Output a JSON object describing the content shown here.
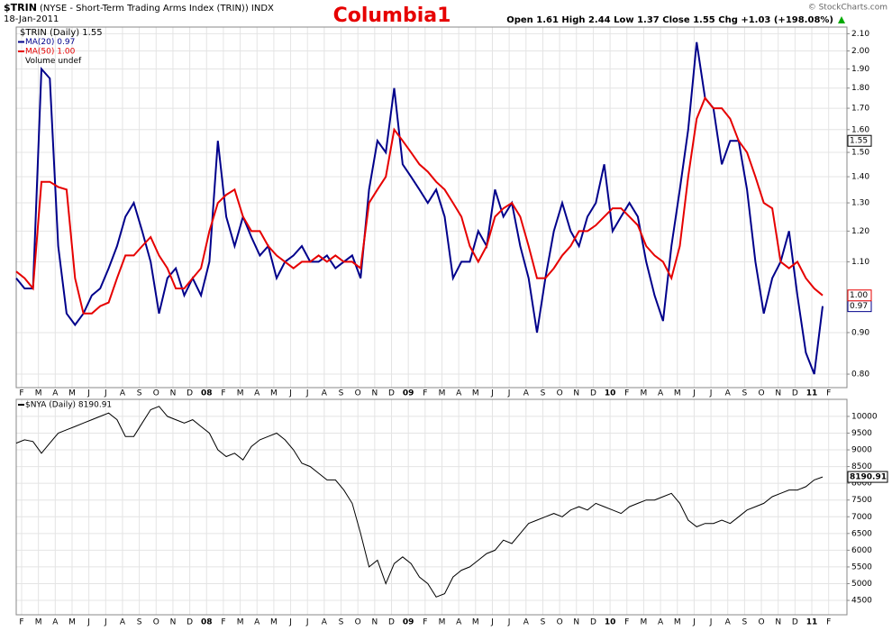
{
  "header": {
    "symbol": "$TRIN",
    "description": "(NYSE - Short-Term Trading Arms Index (TRIN)) INDX",
    "date": "18-Jan-2011",
    "title": "Columbia1",
    "quote": "Open 1.61  High 2.44  Low 1.37  Close 1.55  Chg +1.03 (+198.08%)",
    "copyright": "© StockCharts.com"
  },
  "chart_data": [
    {
      "type": "line",
      "legend_label": "$TRIN (Daily) 1.55",
      "volume_label": "Volume undef",
      "close": {
        "value": 1.55,
        "label": "1.55"
      },
      "log_scale": true,
      "grid": true,
      "ylim": [
        0.77,
        2.14
      ],
      "yticks": [
        {
          "value": 0.8,
          "label": "0.80"
        },
        {
          "value": 0.9,
          "label": "0.90"
        },
        {
          "value": 1.1,
          "label": "1.10"
        },
        {
          "value": 1.2,
          "label": "1.20"
        },
        {
          "value": 1.3,
          "label": "1.30"
        },
        {
          "value": 1.4,
          "label": "1.40"
        },
        {
          "value": 1.5,
          "label": "1.50"
        },
        {
          "value": 1.6,
          "label": "1.60"
        },
        {
          "value": 1.7,
          "label": "1.70"
        },
        {
          "value": 1.8,
          "label": "1.80"
        },
        {
          "value": 1.9,
          "label": "1.90"
        },
        {
          "value": 2.0,
          "label": "2.00"
        },
        {
          "value": 2.1,
          "label": "2.10"
        }
      ],
      "x_labels": [
        "F",
        "M",
        "A",
        "M",
        "J",
        "J",
        "A",
        "S",
        "O",
        "N",
        "D",
        "08",
        "F",
        "M",
        "A",
        "M",
        "J",
        "J",
        "A",
        "S",
        "O",
        "N",
        "D",
        "09",
        "F",
        "M",
        "A",
        "M",
        "J",
        "J",
        "A",
        "S",
        "O",
        "N",
        "D",
        "10",
        "F",
        "M",
        "A",
        "M",
        "J",
        "J",
        "A",
        "S",
        "O",
        "N",
        "D",
        "11",
        "F"
      ],
      "series": [
        {
          "name": "MA(20) 0.97",
          "end_label": "0.97",
          "color": "#00008b",
          "values": [
            1.05,
            1.02,
            1.02,
            1.9,
            1.85,
            1.15,
            0.95,
            0.92,
            0.95,
            1.0,
            1.02,
            1.08,
            1.15,
            1.25,
            1.3,
            1.2,
            1.1,
            0.95,
            1.05,
            1.08,
            1.0,
            1.05,
            1.0,
            1.1,
            1.55,
            1.25,
            1.15,
            1.25,
            1.18,
            1.12,
            1.15,
            1.05,
            1.1,
            1.12,
            1.15,
            1.1,
            1.1,
            1.12,
            1.08,
            1.1,
            1.12,
            1.05,
            1.35,
            1.55,
            1.5,
            1.8,
            1.45,
            1.4,
            1.35,
            1.3,
            1.35,
            1.25,
            1.05,
            1.1,
            1.1,
            1.2,
            1.15,
            1.35,
            1.25,
            1.3,
            1.15,
            1.05,
            0.9,
            1.05,
            1.2,
            1.3,
            1.2,
            1.15,
            1.25,
            1.3,
            1.45,
            1.2,
            1.25,
            1.3,
            1.25,
            1.1,
            1.0,
            0.93,
            1.15,
            1.35,
            1.6,
            2.05,
            1.75,
            1.7,
            1.45,
            1.55,
            1.55,
            1.35,
            1.1,
            0.95,
            1.05,
            1.1,
            1.2,
            1.0,
            0.85,
            0.8,
            0.97
          ]
        },
        {
          "name": "MA(50) 1.00",
          "end_label": "1.00",
          "color": "#e60000",
          "values": [
            1.07,
            1.05,
            1.02,
            1.38,
            1.38,
            1.36,
            1.35,
            1.05,
            0.95,
            0.95,
            0.97,
            0.98,
            1.05,
            1.12,
            1.12,
            1.15,
            1.18,
            1.12,
            1.08,
            1.02,
            1.02,
            1.05,
            1.08,
            1.2,
            1.3,
            1.33,
            1.35,
            1.25,
            1.2,
            1.2,
            1.15,
            1.12,
            1.1,
            1.08,
            1.1,
            1.1,
            1.12,
            1.1,
            1.12,
            1.1,
            1.1,
            1.08,
            1.3,
            1.35,
            1.4,
            1.6,
            1.55,
            1.5,
            1.45,
            1.42,
            1.38,
            1.35,
            1.3,
            1.25,
            1.15,
            1.1,
            1.15,
            1.25,
            1.28,
            1.3,
            1.25,
            1.15,
            1.05,
            1.05,
            1.08,
            1.12,
            1.15,
            1.2,
            1.2,
            1.22,
            1.25,
            1.28,
            1.28,
            1.25,
            1.22,
            1.15,
            1.12,
            1.1,
            1.05,
            1.15,
            1.4,
            1.65,
            1.75,
            1.7,
            1.7,
            1.65,
            1.55,
            1.5,
            1.4,
            1.3,
            1.28,
            1.1,
            1.08,
            1.1,
            1.05,
            1.02,
            1.0
          ]
        }
      ]
    },
    {
      "type": "line",
      "log_scale": false,
      "grid": true,
      "ylim": [
        4070,
        10510
      ],
      "yticks": [
        4500,
        5000,
        5500,
        6000,
        6500,
        7000,
        7500,
        8000,
        8500,
        9000,
        9500,
        10000
      ],
      "x_labels": [
        "F",
        "M",
        "A",
        "M",
        "J",
        "J",
        "A",
        "S",
        "O",
        "N",
        "D",
        "08",
        "F",
        "M",
        "A",
        "M",
        "J",
        "J",
        "A",
        "S",
        "O",
        "N",
        "D",
        "09",
        "F",
        "M",
        "A",
        "M",
        "J",
        "J",
        "A",
        "S",
        "O",
        "N",
        "D",
        "10",
        "F",
        "M",
        "A",
        "M",
        "J",
        "J",
        "A",
        "S",
        "O",
        "N",
        "D",
        "11",
        "F"
      ],
      "series": [
        {
          "name": "$NYA (Daily) 8190.91",
          "end_label": "8190.91",
          "color": "#000000",
          "values": [
            9200,
            9300,
            9250,
            8900,
            9200,
            9500,
            9600,
            9700,
            9800,
            9900,
            10000,
            10100,
            9900,
            9400,
            9400,
            9800,
            10200,
            10300,
            10000,
            9900,
            9800,
            9900,
            9700,
            9500,
            9000,
            8800,
            8900,
            8700,
            9100,
            9300,
            9400,
            9500,
            9300,
            9000,
            8600,
            8500,
            8300,
            8100,
            8100,
            7800,
            7400,
            6500,
            5500,
            5700,
            5000,
            5600,
            5800,
            5600,
            5200,
            5000,
            4600,
            4700,
            5200,
            5400,
            5500,
            5700,
            5900,
            6000,
            6300,
            6200,
            6500,
            6800,
            6900,
            7000,
            7100,
            7000,
            7200,
            7300,
            7200,
            7400,
            7300,
            7200,
            7100,
            7300,
            7400,
            7500,
            7500,
            7600,
            7700,
            7400,
            6900,
            6700,
            6800,
            6800,
            6900,
            6800,
            7000,
            7200,
            7300,
            7400,
            7600,
            7700,
            7800,
            7800,
            7900,
            8100,
            8190.91
          ]
        }
      ]
    }
  ]
}
